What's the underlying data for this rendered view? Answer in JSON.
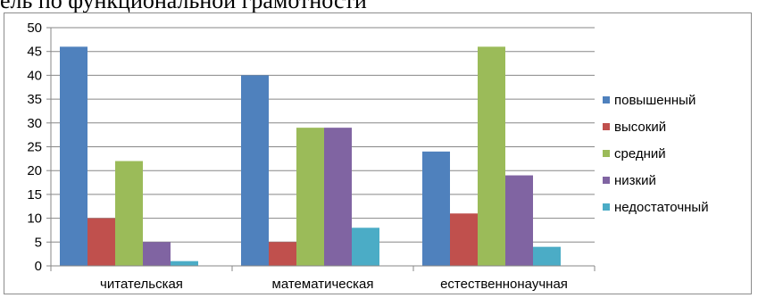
{
  "page_heading": "ель по функциональной грамотности",
  "chart_data": {
    "type": "bar",
    "title": "",
    "xlabel": "",
    "ylabel": "",
    "ylim": [
      0,
      50
    ],
    "yticks": [
      0,
      5,
      10,
      15,
      20,
      25,
      30,
      35,
      40,
      45,
      50
    ],
    "grid": true,
    "legend_position": "right",
    "categories": [
      "читательская",
      "математическая",
      "естественнонаучная"
    ],
    "series": [
      {
        "name": "повышенный",
        "color": "#4F81BD",
        "values": [
          46,
          40,
          24
        ]
      },
      {
        "name": "высокий",
        "color": "#C0504D",
        "values": [
          10,
          5,
          11
        ]
      },
      {
        "name": "средний",
        "color": "#9BBB59",
        "values": [
          22,
          29,
          46
        ]
      },
      {
        "name": "низкий",
        "color": "#8064A2",
        "values": [
          5,
          29,
          19
        ]
      },
      {
        "name": "недостаточный",
        "color": "#4BACC6",
        "values": [
          1,
          8,
          4
        ]
      }
    ]
  }
}
